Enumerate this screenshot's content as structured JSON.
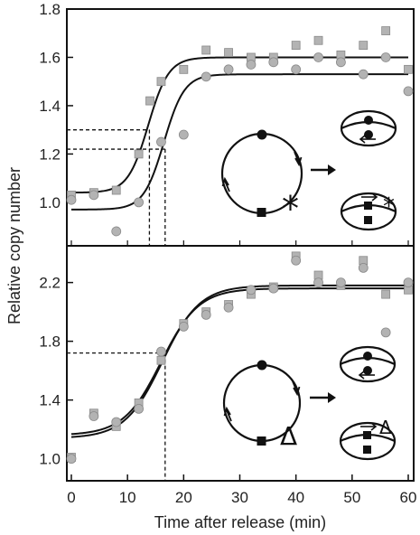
{
  "chart_data": [
    {
      "type": "scatter",
      "panel": "top",
      "ylabel": "Relative copy number",
      "xlim": [
        0,
        60
      ],
      "ylim": [
        0.82,
        1.8
      ],
      "yticks": [
        "1.0",
        "1.2",
        "1.4",
        "1.6",
        "1.8"
      ],
      "ytick_values": [
        1.0,
        1.2,
        1.4,
        1.6,
        1.8
      ],
      "series": [
        {
          "marker": "square",
          "color": "#b3b3b3",
          "points": [
            [
              0,
              1.03
            ],
            [
              4,
              1.04
            ],
            [
              8,
              1.05
            ],
            [
              12,
              1.2
            ],
            [
              14,
              1.42
            ],
            [
              16,
              1.5
            ],
            [
              20,
              1.55
            ],
            [
              24,
              1.63
            ],
            [
              28,
              1.62
            ],
            [
              32,
              1.6
            ],
            [
              36,
              1.6
            ],
            [
              40,
              1.65
            ],
            [
              44,
              1.67
            ],
            [
              48,
              1.61
            ],
            [
              52,
              1.65
            ],
            [
              56,
              1.71
            ],
            [
              60,
              1.55
            ]
          ],
          "fit": {
            "base": 1.04,
            "top": 1.6,
            "mid": 13.7,
            "k": 0.55
          }
        },
        {
          "marker": "circle",
          "color": "#b3b3b3",
          "points": [
            [
              0,
              1.01
            ],
            [
              4,
              1.03
            ],
            [
              8,
              0.88
            ],
            [
              12,
              1.0
            ],
            [
              16,
              1.25
            ],
            [
              20,
              1.28
            ],
            [
              24,
              1.52
            ],
            [
              28,
              1.55
            ],
            [
              32,
              1.57
            ],
            [
              36,
              1.58
            ],
            [
              40,
              1.55
            ],
            [
              44,
              1.6
            ],
            [
              48,
              1.58
            ],
            [
              52,
              1.53
            ],
            [
              56,
              1.6
            ],
            [
              60,
              1.46
            ]
          ],
          "fit": {
            "base": 0.97,
            "top": 1.53,
            "mid": 16.5,
            "k": 0.55
          }
        }
      ],
      "guides": [
        {
          "y": 1.3,
          "x": 13.9
        },
        {
          "y": 1.22,
          "x": 16.7
        }
      ]
    },
    {
      "type": "scatter",
      "panel": "bottom",
      "xlabel": "Time after release (min)",
      "xlim": [
        0,
        60
      ],
      "xticks": [
        "0",
        "10",
        "20",
        "30",
        "40",
        "50",
        "60"
      ],
      "xtick_values": [
        0,
        10,
        20,
        30,
        40,
        50,
        60
      ],
      "ylim": [
        0.85,
        2.45
      ],
      "yticks": [
        "1.0",
        "1.4",
        "1.8",
        "2.2"
      ],
      "ytick_values": [
        1.0,
        1.4,
        1.8,
        2.2
      ],
      "series": [
        {
          "marker": "square",
          "color": "#b3b3b3",
          "points": [
            [
              0,
              1.01
            ],
            [
              4,
              1.31
            ],
            [
              8,
              1.22
            ],
            [
              12,
              1.38
            ],
            [
              16,
              1.67
            ],
            [
              20,
              1.92
            ],
            [
              24,
              2.0
            ],
            [
              28,
              2.05
            ],
            [
              32,
              2.12
            ],
            [
              36,
              2.17
            ],
            [
              40,
              2.38
            ],
            [
              44,
              2.25
            ],
            [
              48,
              2.18
            ],
            [
              52,
              2.35
            ],
            [
              56,
              2.12
            ],
            [
              60,
              2.15
            ]
          ],
          "fit": {
            "base": 1.14,
            "top": 2.18,
            "mid": 16.2,
            "k": 0.3
          }
        },
        {
          "marker": "circle",
          "color": "#b3b3b3",
          "points": [
            [
              0,
              1.0
            ],
            [
              4,
              1.29
            ],
            [
              8,
              1.25
            ],
            [
              12,
              1.34
            ],
            [
              16,
              1.73
            ],
            [
              20,
              1.9
            ],
            [
              24,
              1.98
            ],
            [
              28,
              2.03
            ],
            [
              32,
              2.15
            ],
            [
              36,
              2.16
            ],
            [
              40,
              2.35
            ],
            [
              44,
              2.2
            ],
            [
              48,
              2.2
            ],
            [
              52,
              2.3
            ],
            [
              56,
              1.86
            ],
            [
              60,
              2.2
            ]
          ],
          "fit": {
            "base": 1.16,
            "top": 2.16,
            "mid": 16.0,
            "k": 0.3
          }
        }
      ],
      "guides": [
        {
          "y": 1.72,
          "x": 16.7
        }
      ]
    }
  ],
  "schematics": [
    {
      "label": "*",
      "panel": "top"
    },
    {
      "label": "Δ",
      "panel": "bottom"
    }
  ]
}
